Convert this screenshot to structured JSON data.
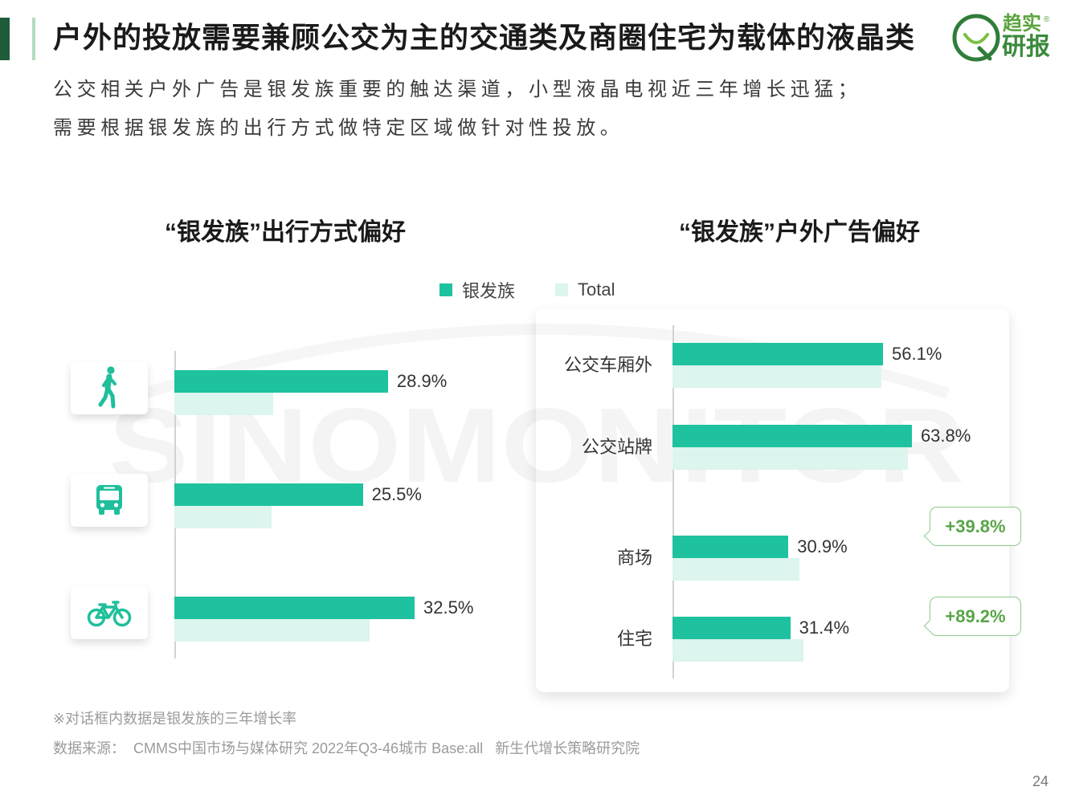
{
  "header": {
    "title": "户外的投放需要兼顾公交为主的交通类及商圈住宅为载体的液晶类"
  },
  "logo": {
    "icon": "q-circle-logo-icon",
    "name_top": "趋实",
    "name_bottom": "研报",
    "registered_mark": "®",
    "colors": {
      "primary": "#2f7d3b",
      "secondary": "#7cbf45"
    }
  },
  "summary": {
    "line1": "公交相关户外广告是银发族重要的触达渠道，小型液晶电视近三年增长迅猛；",
    "line2": "需要根据银发族的出行方式做特定区域做针对性投放。"
  },
  "legend": {
    "items": [
      {
        "label": "银发族",
        "color": "#1fc29e"
      },
      {
        "label": "Total",
        "color": "#dcf5ee"
      }
    ]
  },
  "watermark": {
    "text": "SINOMONITOR"
  },
  "chart_data": [
    {
      "type": "bar",
      "orientation": "horizontal",
      "title": "“银发族”出行方式偏好",
      "category_icons": [
        "walking-icon",
        "bus-icon",
        "bicycle-icon"
      ],
      "series": [
        {
          "name": "银发族",
          "values": [
            28.9,
            25.5,
            32.5
          ],
          "labels": [
            "28.9%",
            "25.5%",
            "32.5%"
          ],
          "color": "#1fc29e"
        },
        {
          "name": "Total",
          "values": [
            13.4,
            13.1,
            26.4
          ],
          "color": "#dcf5ee"
        }
      ],
      "grid": false,
      "legend_position": "top"
    },
    {
      "type": "bar",
      "orientation": "horizontal",
      "title": "“银发族”户外广告偏好",
      "categories": [
        "公交车厢外",
        "公交站牌",
        "商场",
        "住宅"
      ],
      "series": [
        {
          "name": "银发族",
          "values": [
            56.1,
            63.8,
            30.9,
            31.4
          ],
          "labels": [
            "56.1%",
            "63.8%",
            "30.9%",
            "31.4%"
          ],
          "color": "#1fc29e"
        },
        {
          "name": "Total",
          "values": [
            55.7,
            62.7,
            33.9,
            34.9
          ],
          "color": "#dcf5ee"
        }
      ],
      "annotations": [
        {
          "category": "商场",
          "text": "+39.8%"
        },
        {
          "category": "住宅",
          "text": "+89.2%"
        }
      ],
      "grid": false,
      "legend_position": "top"
    }
  ],
  "footer": {
    "note": "※对话框内数据是银发族的三年增长率",
    "source": "数据来源：  CMMS中国市场与媒体研究 2022年Q3-46城市 Base:all   新生代增长策略研究院",
    "page_number": "24"
  }
}
